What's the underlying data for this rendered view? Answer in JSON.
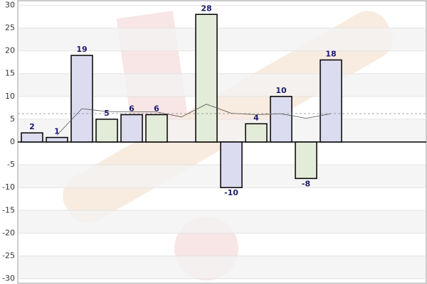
{
  "chart_data": {
    "type": "bar",
    "values": [
      2,
      1,
      19,
      5,
      6,
      6,
      null,
      28,
      -10,
      4,
      10,
      -8,
      18
    ],
    "colors": [
      "#dcdcf0",
      "#dcdcf0",
      "#dcdcf0",
      "#e2ecd8",
      "#dcdcf0",
      "#e2ecd8",
      null,
      "#e2ecd8",
      "#dcdcf0",
      "#e2ecd8",
      "#dcdcf0",
      "#e2ecd8",
      "#dcdcf0"
    ],
    "trend": [
      null,
      1.5,
      7.3,
      6.7,
      6.6,
      6.6,
      5.5,
      8.3,
      6.3,
      6.0,
      6.2,
      5.2,
      6.2
    ],
    "average": 6.23,
    "ylim": [
      -31,
      31
    ],
    "yticks": [
      -30,
      -25,
      -20,
      -15,
      -10,
      -5,
      0,
      5,
      10,
      15,
      20,
      25,
      30
    ],
    "grid": true
  }
}
